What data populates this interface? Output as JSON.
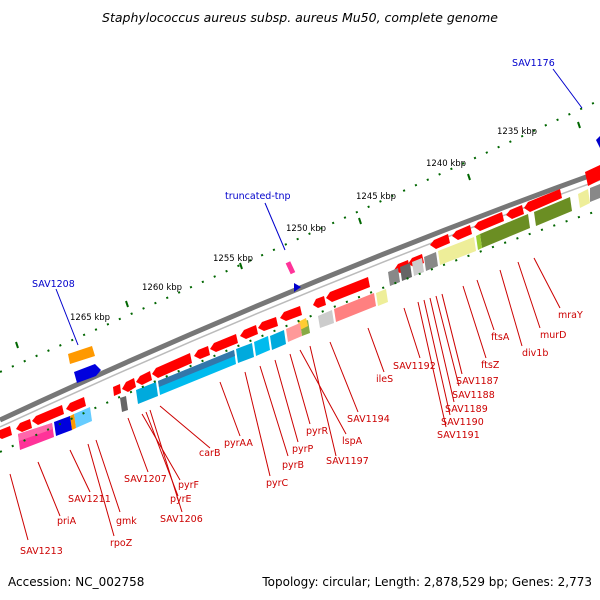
{
  "title": "Staphylococcus aureus subsp. aureus Mu50, complete genome",
  "accession": "Accession: NC_002758",
  "summary": "Topology: circular; Length: 2,878,529 bp; Genes: 2,773",
  "scale_labels": [
    "1235 kbp",
    "1240 kbp",
    "1245 kbp",
    "1250 kbp",
    "1255 kbp",
    "1260 kbp",
    "1265 kbp"
  ],
  "mobile_labels": [
    "SAV1176",
    "truncated-tnp",
    "SAV1208"
  ],
  "gene_labels": [
    "mraY",
    "murD",
    "div1b",
    "ftsA",
    "ftsZ",
    "SAV1187",
    "SAV1188",
    "SAV1189",
    "SAV1190",
    "SAV1191",
    "SAV1192",
    "ileS",
    "SAV1194",
    "SAV1197",
    "lspA",
    "pyrR",
    "pyrP",
    "pyrB",
    "pyrC",
    "pyrAA",
    "carB",
    "SAV1206",
    "pyrE",
    "pyrF",
    "SAV1207",
    "gmk",
    "rpoZ",
    "SAV1211",
    "priA",
    "SAV1213"
  ],
  "colors": {
    "gene_red": "#ff0000",
    "backbone": "#777777",
    "tick_green": "#006600",
    "mobile_blue": "#0000cc",
    "cds_olive": "#6b8e23",
    "cds_yellow": "#eeee99",
    "cds_cyan": "#00aadd",
    "cds_pink": "#ff3399",
    "cds_orange": "#ff9900",
    "cds_grey": "#888888"
  }
}
